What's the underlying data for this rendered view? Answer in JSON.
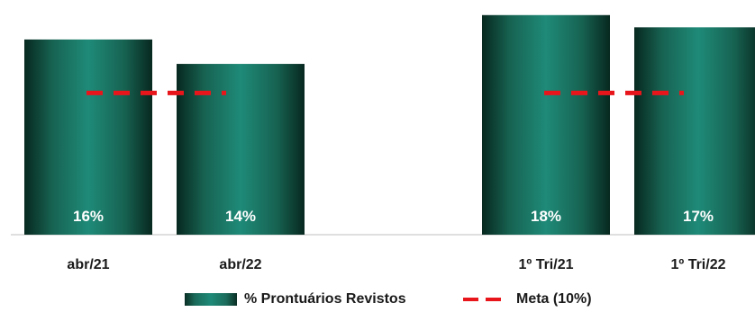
{
  "chart_data": {
    "type": "bar",
    "categories": [
      "abr/21",
      "abr/22",
      "1º Tri/21",
      "1º Tri/22"
    ],
    "series": [
      {
        "name": "% Prontuários Revistos",
        "values": [
          16,
          14,
          18,
          17
        ],
        "labels": [
          "16%",
          "14%",
          "18%",
          "17%"
        ],
        "color": "#1f8a78"
      },
      {
        "name": "Meta (10%)",
        "type": "line",
        "style": "dashed",
        "values": [
          10,
          10,
          10,
          10
        ],
        "color": "#e8161b"
      }
    ],
    "groups": [
      [
        "abr/21",
        "abr/22"
      ],
      [
        "1º Tri/21",
        "1º Tri/22"
      ]
    ],
    "ylim": [
      0,
      18.5
    ],
    "title": "",
    "xlabel": "",
    "ylabel": "",
    "legend_position": "bottom"
  },
  "legend": {
    "bars_label": "% Prontuários Revistos",
    "meta_label": "Meta (10%)"
  }
}
